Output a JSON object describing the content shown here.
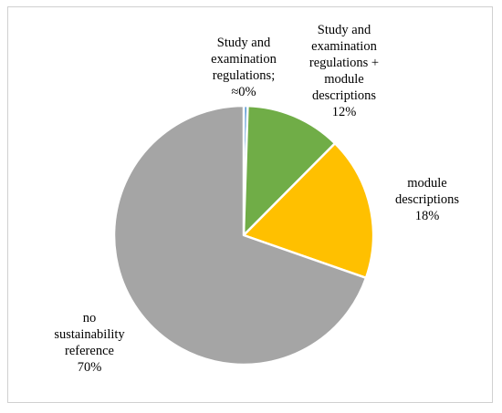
{
  "chart_data": {
    "type": "pie",
    "slices": [
      {
        "label_lines": [
          "Study and",
          "examination",
          "regulations;",
          "≈0%"
        ],
        "value": 0.5,
        "color": "#5b9bd5"
      },
      {
        "label_lines": [
          "Study and",
          "examination",
          "regulations +",
          "module",
          "descriptions",
          "12%"
        ],
        "value": 12,
        "color": "#70ad47"
      },
      {
        "label_lines": [
          "module",
          "descriptions",
          "18%"
        ],
        "value": 18,
        "color": "#ffc000"
      },
      {
        "label_lines": [
          "no",
          "sustainability",
          "reference",
          "70%"
        ],
        "value": 70,
        "color": "#a5a5a5"
      }
    ],
    "start_angle_deg": 0,
    "direction": "clockwise",
    "slice_border_color": "#ffffff"
  }
}
